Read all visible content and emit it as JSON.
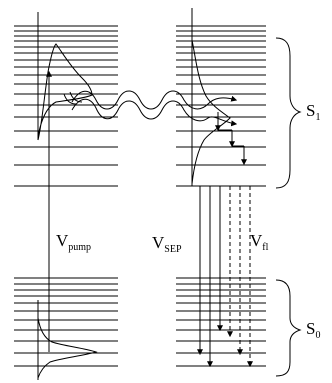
{
  "labels": {
    "v_pump": {
      "main": "V",
      "sub": "pump"
    },
    "v_sep": {
      "main": "V",
      "sub": "SEP"
    },
    "v_fl": {
      "main": "V",
      "sub": "fl"
    },
    "s1": {
      "main": "S",
      "sub": "1"
    },
    "s0": {
      "main": "S",
      "sub": "0"
    }
  },
  "colors": {
    "ink": "#000000",
    "background": "#ffffff"
  }
}
